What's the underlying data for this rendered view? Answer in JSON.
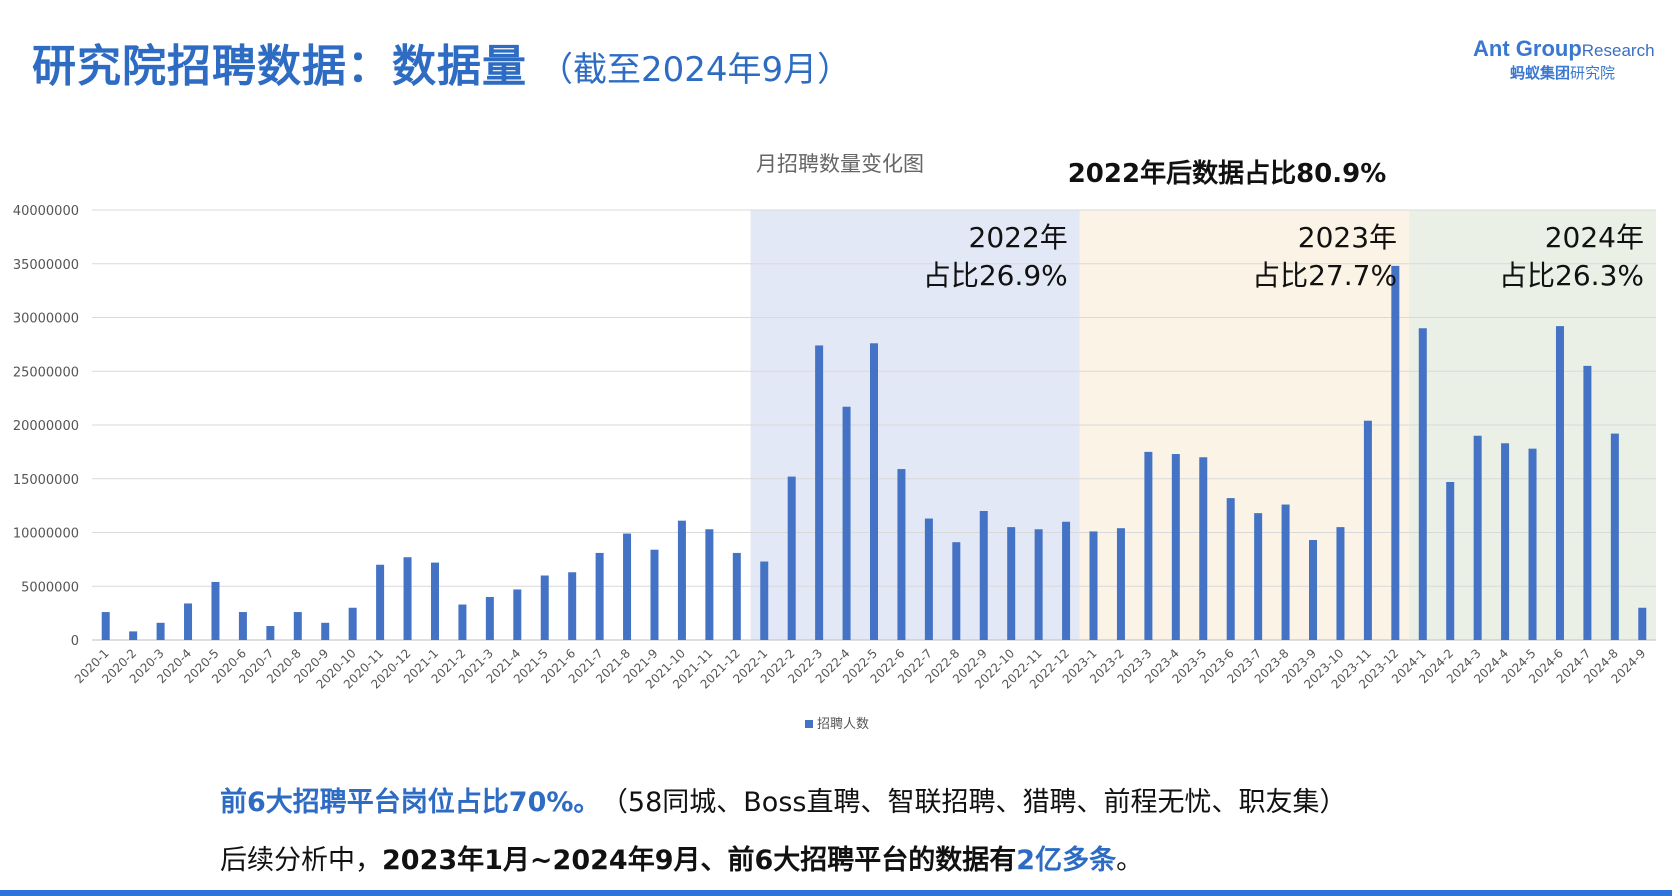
{
  "header": {
    "title": "研究院招聘数据：数据量",
    "subtitle": "（截至2024年9月）"
  },
  "logo": {
    "brand": "Ant Group",
    "research": "Research",
    "cn_bold": "蚂蚁集团",
    "cn": "研究院"
  },
  "colors": {
    "accent": "#2e6cc4",
    "bar": "#4472c4",
    "band_2022": "#e3e8f6",
    "band_2023": "#fbf3e6",
    "band_2024": "#ebf0e7"
  },
  "chart_data": {
    "type": "bar",
    "title": "月招聘数量变化图",
    "annotation_main": "2022年后数据占比80.9%",
    "bands": [
      {
        "year_label": "2022年",
        "share_label": "占比26.9%",
        "from": "2022-1",
        "to": "2022-12"
      },
      {
        "year_label": "2023年",
        "share_label": "占比27.7%",
        "from": "2023-1",
        "to": "2023-12"
      },
      {
        "year_label": "2024年",
        "share_label": "占比26.3%",
        "from": "2024-1",
        "to": "2024-9"
      }
    ],
    "ylim": [
      0,
      40000000
    ],
    "yticks": [
      "0",
      "5000000",
      "10000000",
      "15000000",
      "20000000",
      "25000000",
      "30000000",
      "35000000",
      "40000000"
    ],
    "grid": true,
    "legend_position": "bottom",
    "series": [
      {
        "name": "招聘人数",
        "values": [
          2600000,
          800000,
          1600000,
          3400000,
          5400000,
          2600000,
          1300000,
          2600000,
          1600000,
          3000000,
          7000000,
          7700000,
          7200000,
          3300000,
          4000000,
          4700000,
          6000000,
          6300000,
          8100000,
          9900000,
          8400000,
          11100000,
          10300000,
          8100000,
          7300000,
          15200000,
          27400000,
          21700000,
          27600000,
          15900000,
          11300000,
          9100000,
          12000000,
          10500000,
          10300000,
          11000000,
          10100000,
          10400000,
          17500000,
          17300000,
          17000000,
          13200000,
          11800000,
          12600000,
          9300000,
          10500000,
          20400000,
          34800000,
          29000000,
          14700000,
          19000000,
          18300000,
          17800000,
          29200000,
          25500000,
          19200000,
          3000000
        ]
      }
    ],
    "categories": [
      "2020-1",
      "2020-2",
      "2020-3",
      "2020-4",
      "2020-5",
      "2020-6",
      "2020-7",
      "2020-8",
      "2020-9",
      "2020-10",
      "2020-11",
      "2020-12",
      "2021-1",
      "2021-2",
      "2021-3",
      "2021-4",
      "2021-5",
      "2021-6",
      "2021-7",
      "2021-8",
      "2021-9",
      "2021-10",
      "2021-11",
      "2021-12",
      "2022-1",
      "2022-2",
      "2022-3",
      "2022-4",
      "2022-5",
      "2022-6",
      "2022-7",
      "2022-8",
      "2022-9",
      "2022-10",
      "2022-11",
      "2022-12",
      "2023-1",
      "2023-2",
      "2023-3",
      "2023-4",
      "2023-5",
      "2023-6",
      "2023-7",
      "2023-8",
      "2023-9",
      "2023-10",
      "2023-11",
      "2023-12",
      "2024-1",
      "2024-2",
      "2024-3",
      "2024-4",
      "2024-5",
      "2024-6",
      "2024-7",
      "2024-8",
      "2024-9"
    ]
  },
  "footer": {
    "line1_highlight": "前6大招聘平台岗位占比70%。",
    "line1_rest": "（58同城、Boss直聘、智联招聘、猎聘、前程无忧、职友集）",
    "line2_prefix": "后续分析中，",
    "line2_bold": "2023年1月~2024年9月、前6大招聘平台的数据有",
    "line2_highlight": "2亿多条",
    "line2_end": "。"
  }
}
